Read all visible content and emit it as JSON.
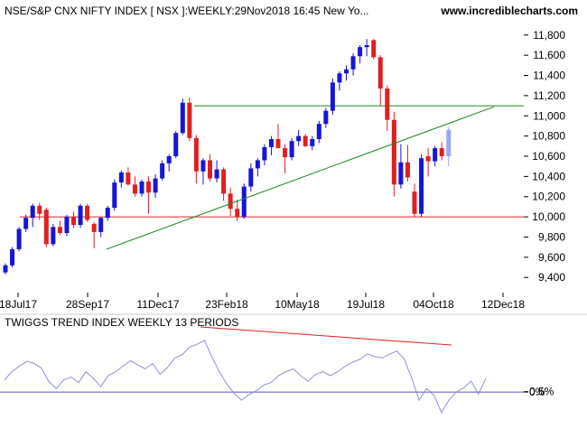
{
  "header": {
    "title": "NSE/S&P CNX NIFTY INDEX [ NSX ]:WEEKLY:29Nov2018 16:45 New Yo...",
    "site": "www.incrediblecharts.com"
  },
  "indicator": {
    "title": "TWIGGS TREND INDEX WEEKLY 13 PERIODS"
  },
  "colors": {
    "up": "#1616d6",
    "down": "#e02020",
    "current": "#9aa6f0",
    "support": "#e02020",
    "trendline": "#1a8a1a",
    "indicator": "#8f8fd6",
    "zero_line": "#5555cc",
    "grid_background": "#ffffff"
  },
  "chart_data": [
    {
      "type": "candlestick",
      "title": "NSE/S&P CNX NIFTY INDEX [ NSX ]:WEEKLY:29Nov2018 16:45 New Yo...",
      "x_tick_labels": [
        "18Jul17",
        "28Sep17",
        "11Dec17",
        "23Feb18",
        "10May18",
        "19Jul18",
        "04Oct18",
        "12Dec18"
      ],
      "y_tick_labels": [
        "9,400",
        "9,600",
        "9,800",
        "10,000",
        "10,200",
        "10,400",
        "10,600",
        "10,800",
        "11,000",
        "11,200",
        "11,400",
        "11,600",
        "11,800"
      ],
      "ylim": [
        9250,
        11950
      ],
      "ohlc": [
        [
          9450,
          9540,
          9430,
          9520
        ],
        [
          9520,
          9700,
          9500,
          9680
        ],
        [
          9680,
          9900,
          9660,
          9880
        ],
        [
          9880,
          10020,
          9850,
          9990
        ],
        [
          9990,
          10130,
          9900,
          10110
        ],
        [
          10110,
          10140,
          9970,
          10030
        ],
        [
          10070,
          10090,
          9700,
          9730
        ],
        [
          9730,
          9930,
          9710,
          9900
        ],
        [
          9900,
          9960,
          9820,
          9840
        ],
        [
          9840,
          10020,
          9810,
          10000
        ],
        [
          10000,
          10050,
          9890,
          9920
        ],
        [
          9920,
          10130,
          9890,
          10110
        ],
        [
          10110,
          10130,
          9950,
          9970
        ],
        [
          9930,
          9950,
          9690,
          9850
        ],
        [
          9850,
          10000,
          9800,
          9990
        ],
        [
          9990,
          10110,
          9960,
          10090
        ],
        [
          10090,
          10370,
          10060,
          10340
        ],
        [
          10340,
          10460,
          10290,
          10440
        ],
        [
          10440,
          10490,
          10310,
          10320
        ],
        [
          10320,
          10400,
          10200,
          10230
        ],
        [
          10230,
          10370,
          10200,
          10350
        ],
        [
          10350,
          10400,
          10030,
          10240
        ],
        [
          10240,
          10420,
          10190,
          10380
        ],
        [
          10380,
          10560,
          10360,
          10530
        ],
        [
          10530,
          10620,
          10450,
          10600
        ],
        [
          10600,
          10850,
          10580,
          10830
        ],
        [
          10830,
          11170,
          10810,
          11130
        ],
        [
          11130,
          11180,
          10750,
          10780
        ],
        [
          10780,
          10810,
          10330,
          10450
        ],
        [
          10450,
          10580,
          10320,
          10560
        ],
        [
          10560,
          10620,
          10350,
          10380
        ],
        [
          10380,
          10560,
          10340,
          10470
        ],
        [
          10470,
          10490,
          10160,
          10230
        ],
        [
          10230,
          10290,
          10010,
          10080
        ],
        [
          10080,
          10170,
          9960,
          10000
        ],
        [
          10000,
          10330,
          9980,
          10300
        ],
        [
          10300,
          10530,
          10250,
          10480
        ],
        [
          10480,
          10580,
          10400,
          10560
        ],
        [
          10560,
          10720,
          10510,
          10690
        ],
        [
          10690,
          10800,
          10610,
          10770
        ],
        [
          10770,
          10920,
          10700,
          10680
        ],
        [
          10680,
          10720,
          10430,
          10590
        ],
        [
          10590,
          10780,
          10560,
          10750
        ],
        [
          10750,
          10860,
          10700,
          10800
        ],
        [
          10800,
          10820,
          10690,
          10700
        ],
        [
          10700,
          10800,
          10660,
          10770
        ],
        [
          10770,
          10950,
          10730,
          10920
        ],
        [
          10920,
          11080,
          10880,
          11050
        ],
        [
          11050,
          11370,
          11010,
          11330
        ],
        [
          11330,
          11440,
          11250,
          11420
        ],
        [
          11420,
          11500,
          11350,
          11460
        ],
        [
          11460,
          11620,
          11400,
          11590
        ],
        [
          11590,
          11700,
          11520,
          11680
        ],
        [
          11680,
          11760,
          11590,
          11700
        ],
        [
          11750,
          11760,
          11560,
          11580
        ],
        [
          11580,
          11600,
          11100,
          11270
        ],
        [
          11270,
          11300,
          10850,
          10960
        ],
        [
          10960,
          11040,
          10200,
          10320
        ],
        [
          10320,
          10720,
          10280,
          10540
        ],
        [
          10540,
          10710,
          10350,
          10390
        ],
        [
          10250,
          10330,
          10000,
          10030
        ],
        [
          10030,
          10620,
          10000,
          10580
        ],
        [
          10600,
          10680,
          10400,
          10550
        ],
        [
          10550,
          10700,
          10500,
          10680
        ],
        [
          10680,
          10740,
          10560,
          10600
        ],
        [
          10600,
          10890,
          10500,
          10860
        ]
      ],
      "support_line": 10000,
      "resistance_line": 11100,
      "trendline": [
        [
          10,
          9680
        ],
        [
          78,
          11090
        ]
      ]
    },
    {
      "type": "line",
      "title": "TWIGGS TREND INDEX WEEKLY 13 PERIODS",
      "y_tick_labels": [
        "0%",
        "0.5%"
      ],
      "ylim": [
        -0.45,
        0.85
      ],
      "values": [
        0.18,
        0.3,
        0.38,
        0.45,
        0.42,
        0.35,
        0.15,
        0.05,
        0.18,
        0.22,
        0.14,
        0.3,
        0.2,
        0.08,
        0.24,
        0.3,
        0.38,
        0.46,
        0.4,
        0.34,
        0.42,
        0.26,
        0.36,
        0.5,
        0.55,
        0.66,
        0.7,
        0.76,
        0.52,
        0.3,
        0.12,
        -0.02,
        -0.12,
        -0.04,
        0.02,
        0.1,
        0.14,
        0.24,
        0.3,
        0.34,
        0.24,
        0.16,
        0.26,
        0.3,
        0.24,
        0.3,
        0.38,
        0.44,
        0.48,
        0.56,
        0.52,
        0.5,
        0.56,
        0.6,
        0.48,
        0.2,
        -0.12,
        0.05,
        -0.05,
        -0.3,
        -0.12,
        0.0,
        0.06,
        0.16,
        -0.03,
        0.2
      ],
      "divergence_line": [
        [
          23,
          0.85
        ],
        [
          73,
          0.61
        ]
      ]
    }
  ]
}
